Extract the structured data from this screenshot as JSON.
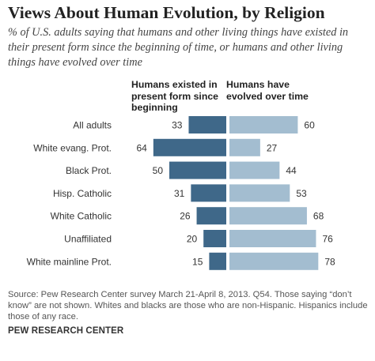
{
  "title": "Views About Human Evolution, by Religion",
  "subtitle": "% of U.S. adults saying that humans and other living things have existed in their present form since the beginning of time, or humans and other living things have evolved over time",
  "chart_data": {
    "type": "bar",
    "orientation": "horizontal-diverging",
    "categories": [
      "All adults",
      "White evang. Prot.",
      "Black Prot.",
      "Hisp. Catholic",
      "White Catholic",
      "Unaffiliated",
      "White mainline Prot."
    ],
    "series": [
      {
        "name": "Humans existed in present form since beginning",
        "values": [
          33,
          64,
          50,
          31,
          26,
          20,
          15
        ],
        "color": "#3f6889"
      },
      {
        "name": "Humans have evolved over time",
        "values": [
          60,
          27,
          44,
          53,
          68,
          76,
          78
        ],
        "color": "#a3bdd0"
      }
    ],
    "xlim": [
      0,
      100
    ],
    "grid": false,
    "legend": "column headers above bars"
  },
  "footer": {
    "source": "Source: Pew Research Center survey March 21-April 8, 2013. Q54. Those saying “don’t know” are not shown. Whites and blacks are those who are non-Hispanic. Hispanics include those of any race.",
    "org": "PEW RESEARCH CENTER"
  }
}
